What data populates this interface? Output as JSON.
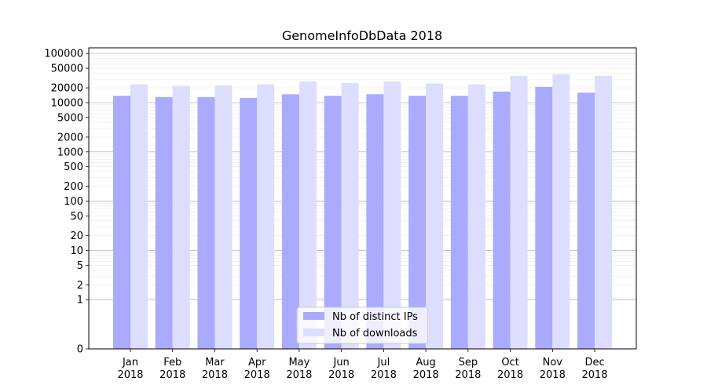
{
  "chart_data": {
    "type": "bar",
    "title": "GenomeInfoDbData 2018",
    "xlabel": "",
    "ylabel": "",
    "yscale": "symlog",
    "ylim": [
      0,
      130000
    ],
    "grid": "horizontal (major and minor)",
    "legend_position": "bottom-center",
    "categories": [
      [
        "Jan",
        "2018"
      ],
      [
        "Feb",
        "2018"
      ],
      [
        "Mar",
        "2018"
      ],
      [
        "Apr",
        "2018"
      ],
      [
        "May",
        "2018"
      ],
      [
        "Jun",
        "2018"
      ],
      [
        "Jul",
        "2018"
      ],
      [
        "Aug",
        "2018"
      ],
      [
        "Sep",
        "2018"
      ],
      [
        "Oct",
        "2018"
      ],
      [
        "Nov",
        "2018"
      ],
      [
        "Dec",
        "2018"
      ]
    ],
    "yticks": [
      "0",
      "1",
      "2",
      "5",
      "10",
      "20",
      "50",
      "100",
      "200",
      "500",
      "1000",
      "2000",
      "5000",
      "10000",
      "20000",
      "50000",
      "100000"
    ],
    "series": [
      {
        "name": "Nb of distinct IPs",
        "color": "#aaaaff",
        "values": [
          13800,
          13000,
          13000,
          12500,
          14800,
          13800,
          14800,
          13800,
          13800,
          16800,
          21000,
          16000
        ]
      },
      {
        "name": "Nb of downloads",
        "color": "#ddddff",
        "values": [
          23500,
          22000,
          22500,
          23500,
          27000,
          25000,
          27000,
          24500,
          23500,
          35000,
          38000,
          35000
        ]
      }
    ]
  }
}
